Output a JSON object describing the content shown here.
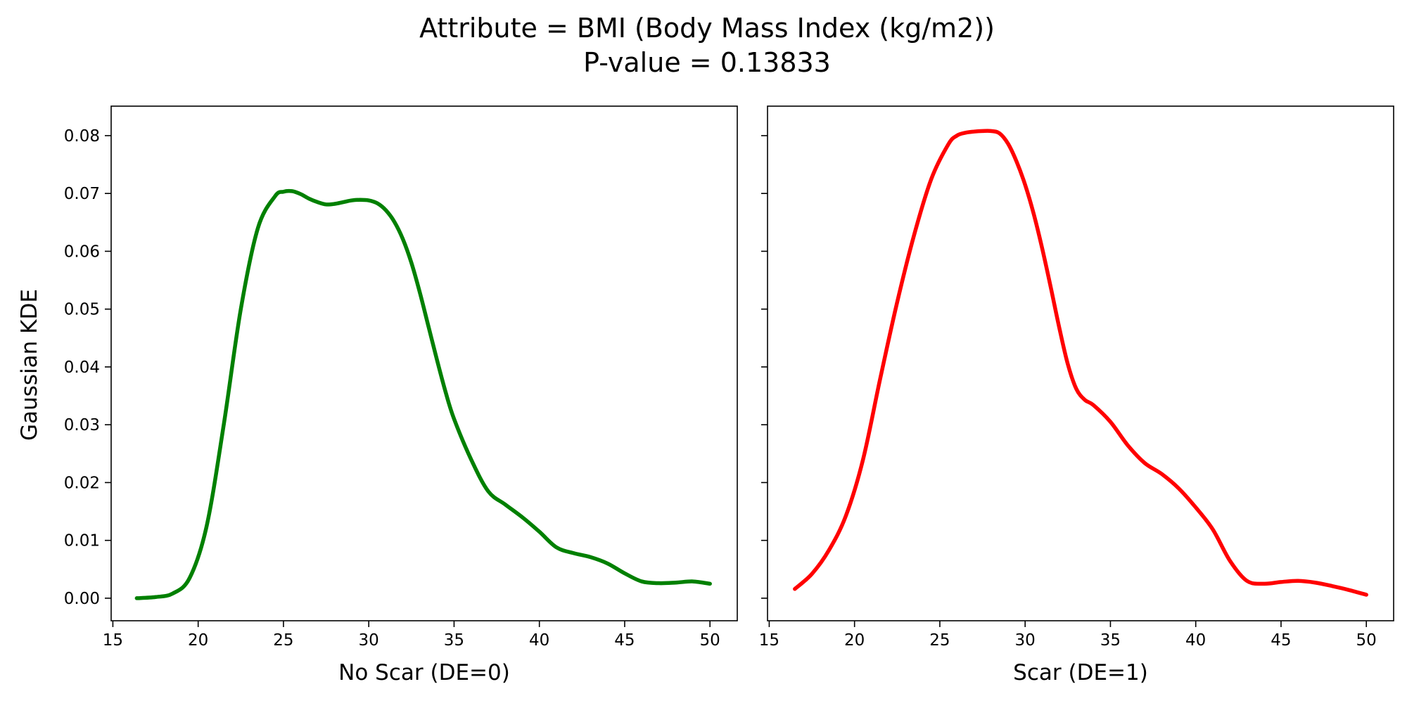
{
  "title": {
    "line1": "Attribute = BMI (Body Mass Index (kg/m2))",
    "line2": "P-value = 0.13833"
  },
  "colors": {
    "left_curve": "#008000",
    "right_curve": "#ff0000"
  },
  "chart_data": [
    {
      "type": "line",
      "xlabel": "No Scar (DE=0)",
      "ylabel": "Gaussian KDE",
      "xlim": [
        14.9,
        51.6
      ],
      "ylim": [
        -0.0039,
        0.0851
      ],
      "xticks": [
        15,
        20,
        25,
        30,
        35,
        40,
        45,
        50
      ],
      "xtick_labels": [
        "15",
        "20",
        "25",
        "30",
        "35",
        "40",
        "45",
        "50"
      ],
      "yticks": [
        0.0,
        0.01,
        0.02,
        0.03,
        0.04,
        0.05,
        0.06,
        0.07,
        0.08
      ],
      "ytick_labels": [
        "0.00",
        "0.01",
        "0.02",
        "0.03",
        "0.04",
        "0.05",
        "0.06",
        "0.07",
        "0.08"
      ],
      "grid": false,
      "series": [
        {
          "color": "#008000",
          "x": [
            16.4,
            17.5,
            18.5,
            19.5,
            20.5,
            21.5,
            22.5,
            23.5,
            24.5,
            25.0,
            25.5,
            26.0,
            26.5,
            27.0,
            27.5,
            28.0,
            28.5,
            29.0,
            29.5,
            30.0,
            30.5,
            31.0,
            31.5,
            32.0,
            32.5,
            33.0,
            33.5,
            34.0,
            34.5,
            35.0,
            36.0,
            37.0,
            38.0,
            39.0,
            40.0,
            41.0,
            42.0,
            43.0,
            44.0,
            45.0,
            46.0,
            47.0,
            48.0,
            49.0,
            50.0
          ],
          "y": [
            0.0,
            0.0002,
            0.0008,
            0.0035,
            0.0125,
            0.03,
            0.05,
            0.064,
            0.0695,
            0.0703,
            0.0704,
            0.0699,
            0.0691,
            0.0685,
            0.0681,
            0.0682,
            0.0685,
            0.0688,
            0.0689,
            0.0688,
            0.0683,
            0.0671,
            0.0651,
            0.0621,
            0.058,
            0.0528,
            0.047,
            0.0412,
            0.0357,
            0.031,
            0.024,
            0.0185,
            0.0162,
            0.014,
            0.0115,
            0.0088,
            0.0078,
            0.0071,
            0.006,
            0.0043,
            0.0029,
            0.0026,
            0.0027,
            0.0029,
            0.0025
          ]
        }
      ]
    },
    {
      "type": "line",
      "xlabel": "Scar (DE=1)",
      "ylabel": "",
      "xlim": [
        14.9,
        51.6
      ],
      "ylim": [
        -0.0039,
        0.0851
      ],
      "xticks": [
        15,
        20,
        25,
        30,
        35,
        40,
        45,
        50
      ],
      "xtick_labels": [
        "15",
        "20",
        "25",
        "30",
        "35",
        "40",
        "45",
        "50"
      ],
      "yticks": [
        0.0,
        0.01,
        0.02,
        0.03,
        0.04,
        0.05,
        0.06,
        0.07,
        0.08
      ],
      "ytick_labels": [],
      "shared_y": true,
      "grid": false,
      "series": [
        {
          "color": "#ff0000",
          "x": [
            16.5,
            17.5,
            18.5,
            19.5,
            20.5,
            21.5,
            22.5,
            23.5,
            24.5,
            25.5,
            26.0,
            26.5,
            27.0,
            27.5,
            28.0,
            28.5,
            29.0,
            29.5,
            30.0,
            30.5,
            31.0,
            31.5,
            32.0,
            32.5,
            33.0,
            33.5,
            34.0,
            35.0,
            36.0,
            37.0,
            38.0,
            39.0,
            40.0,
            41.0,
            42.0,
            43.0,
            44.0,
            45.0,
            46.0,
            47.0,
            48.0,
            49.0,
            50.0
          ],
          "y": [
            0.0016,
            0.0042,
            0.0083,
            0.0143,
            0.024,
            0.0379,
            0.0512,
            0.0629,
            0.0725,
            0.0785,
            0.08,
            0.0805,
            0.0807,
            0.0808,
            0.0808,
            0.0804,
            0.0786,
            0.0755,
            0.0715,
            0.0665,
            0.0605,
            0.0538,
            0.0468,
            0.0405,
            0.0362,
            0.0343,
            0.0334,
            0.0305,
            0.0265,
            0.0234,
            0.0215,
            0.019,
            0.0157,
            0.0119,
            0.0065,
            0.003,
            0.0025,
            0.0028,
            0.003,
            0.0027,
            0.0021,
            0.0014,
            0.0006
          ]
        }
      ]
    }
  ]
}
